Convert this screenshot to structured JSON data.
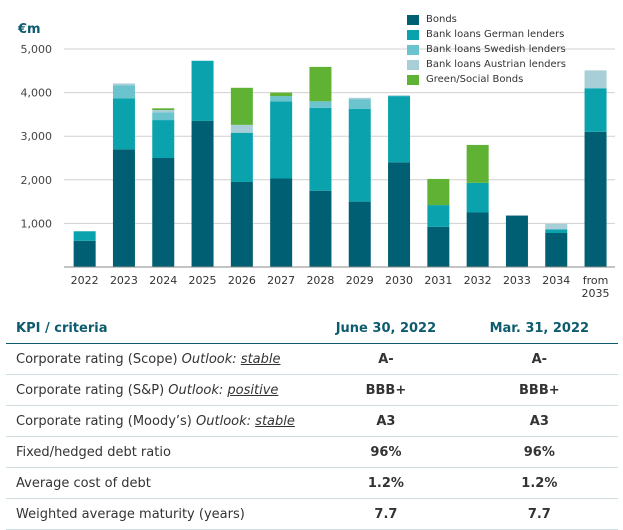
{
  "chart_data": {
    "type": "bar",
    "stacked": true,
    "unit_label": "€m",
    "categories": [
      "2022",
      "2023",
      "2024",
      "2025",
      "2026",
      "2027",
      "2028",
      "2029",
      "2030",
      "2031",
      "2032",
      "2033",
      "2034",
      "from 2035"
    ],
    "series": [
      {
        "name": "Bonds",
        "color": "#005f73",
        "values": [
          600,
          2700,
          2500,
          3350,
          1950,
          2030,
          1750,
          1500,
          2400,
          920,
          1250,
          1180,
          780,
          3100
        ]
      },
      {
        "name": "Bank loans German lenders",
        "color": "#0aa3ad",
        "values": [
          220,
          1170,
          870,
          1380,
          1130,
          1770,
          1900,
          2130,
          1520,
          500,
          680,
          0,
          80,
          1000
        ]
      },
      {
        "name": "Bank loans Swedish lenders",
        "color": "#6ac3cd",
        "values": [
          0,
          300,
          180,
          0,
          0,
          120,
          150,
          220,
          0,
          0,
          0,
          0,
          0,
          0
        ]
      },
      {
        "name": "Bank loans Austrian lenders",
        "color": "#a8cfd7",
        "values": [
          0,
          40,
          50,
          0,
          180,
          0,
          0,
          30,
          20,
          0,
          0,
          0,
          130,
          410
        ]
      },
      {
        "name": "Green/Social Bonds",
        "color": "#5fb234",
        "values": [
          0,
          0,
          40,
          0,
          850,
          80,
          790,
          0,
          0,
          600,
          870,
          0,
          0,
          0
        ]
      }
    ],
    "ylim": [
      0,
      5000
    ],
    "yticks": [
      "1,000",
      "2,000",
      "3,000",
      "4,000",
      "5,000"
    ],
    "grid": true,
    "legend_position": "top-right"
  },
  "table": {
    "headers": {
      "kpi": "KPI / criteria",
      "col1": "June 30, 2022",
      "col2": "Mar. 31, 2022"
    },
    "rows": [
      {
        "label": "Corporate rating (Scope)",
        "outlook_word": "Outlook:",
        "outlook_value": "stable",
        "col1": "A-",
        "col2": "A-"
      },
      {
        "label": "Corporate rating (S&P)",
        "outlook_word": "Outlook:",
        "outlook_value": "positive",
        "col1": "BBB+",
        "col2": "BBB+"
      },
      {
        "label": "Corporate rating (Moody’s)",
        "outlook_word": "Outlook:",
        "outlook_value": "stable",
        "col1": "A3",
        "col2": "A3"
      },
      {
        "label": "Fixed/hedged debt ratio",
        "col1": "96%",
        "col2": "96%"
      },
      {
        "label": "Average cost of debt",
        "col1": "1.2%",
        "col2": "1.2%"
      },
      {
        "label": "Weighted average maturity (years)",
        "col1": "7.7",
        "col2": "7.7"
      }
    ]
  }
}
